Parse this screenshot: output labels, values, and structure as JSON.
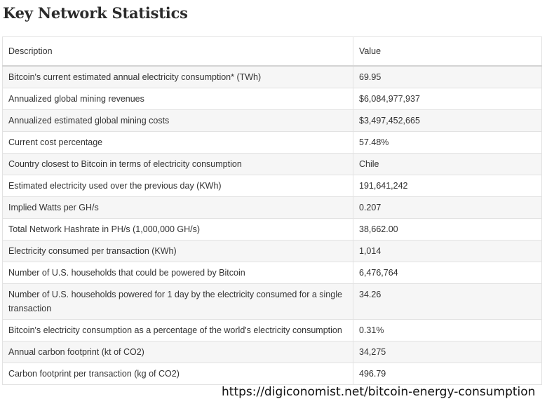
{
  "title": "Key Network Statistics",
  "table": {
    "headers": [
      "Description",
      "Value"
    ],
    "rows": [
      [
        "Bitcoin's current estimated annual electricity consumption* (TWh)",
        "69.95"
      ],
      [
        "Annualized global mining revenues",
        "$6,084,977,937"
      ],
      [
        "Annualized estimated global mining costs",
        "$3,497,452,665"
      ],
      [
        "Current cost percentage",
        "57.48%"
      ],
      [
        "Country closest to Bitcoin in terms of electricity consumption",
        "Chile"
      ],
      [
        "Estimated electricity used over the previous day (KWh)",
        "191,641,242"
      ],
      [
        "Implied Watts per GH/s",
        "0.207"
      ],
      [
        "Total Network Hashrate in PH/s (1,000,000 GH/s)",
        "38,662.00"
      ],
      [
        "Electricity consumed per transaction (KWh)",
        "1,014"
      ],
      [
        "Number of U.S. households that could be powered by Bitcoin",
        "6,476,764"
      ],
      [
        "Number of U.S. households powered for 1 day by the electricity consumed for a single transaction",
        "34.26"
      ],
      [
        "Bitcoin's electricity consumption as a percentage of the world's electricity consumption",
        "0.31%"
      ],
      [
        "Annual carbon footprint (kt of CO2)",
        "34,275"
      ],
      [
        "Carbon footprint per transaction (kg of CO2)",
        "496.79"
      ]
    ]
  },
  "source_url": "https://digiconomist.net/bitcoin-energy-consumption"
}
